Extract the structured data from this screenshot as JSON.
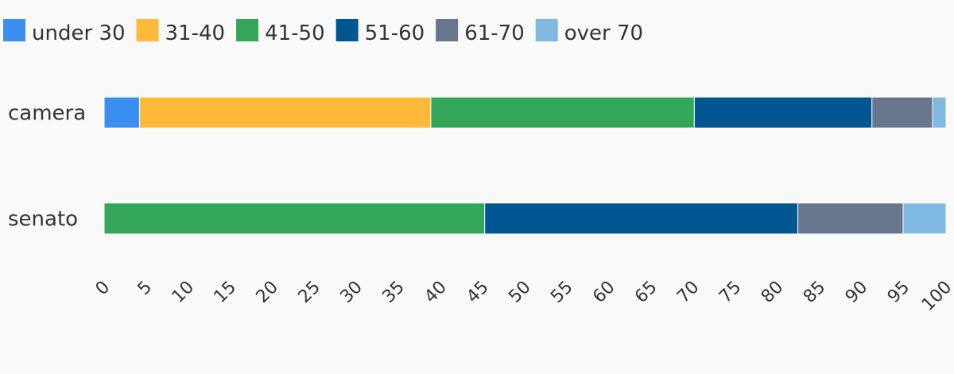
{
  "chart_data": {
    "type": "bar",
    "orientation": "horizontal",
    "stacked": true,
    "categories": [
      "camera",
      "senato"
    ],
    "series": [
      {
        "name": "under 30",
        "color": "#3a8ff0",
        "values": [
          4.2,
          0
        ]
      },
      {
        "name": "31-40",
        "color": "#ffb938",
        "values": [
          34.6,
          0
        ]
      },
      {
        "name": "41-50",
        "color": "#33a65a",
        "values": [
          31.3,
          45.2
        ]
      },
      {
        "name": "51-60",
        "color": "#015792",
        "values": [
          21.1,
          37.2
        ]
      },
      {
        "name": "61-70",
        "color": "#67768c",
        "values": [
          7.2,
          12.5
        ]
      },
      {
        "name": "over 70",
        "color": "#7fb8e0",
        "values": [
          1.6,
          5.1
        ]
      }
    ],
    "xlim": [
      0,
      100
    ],
    "xticks": [
      "0",
      "5",
      "10",
      "15",
      "20",
      "25",
      "30",
      "35",
      "40",
      "45",
      "50",
      "55",
      "60",
      "65",
      "70",
      "75",
      "80",
      "85",
      "90",
      "95",
      "100"
    ],
    "title": "",
    "xlabel": "",
    "ylabel": "",
    "legend": "top-left",
    "grid": false
  }
}
